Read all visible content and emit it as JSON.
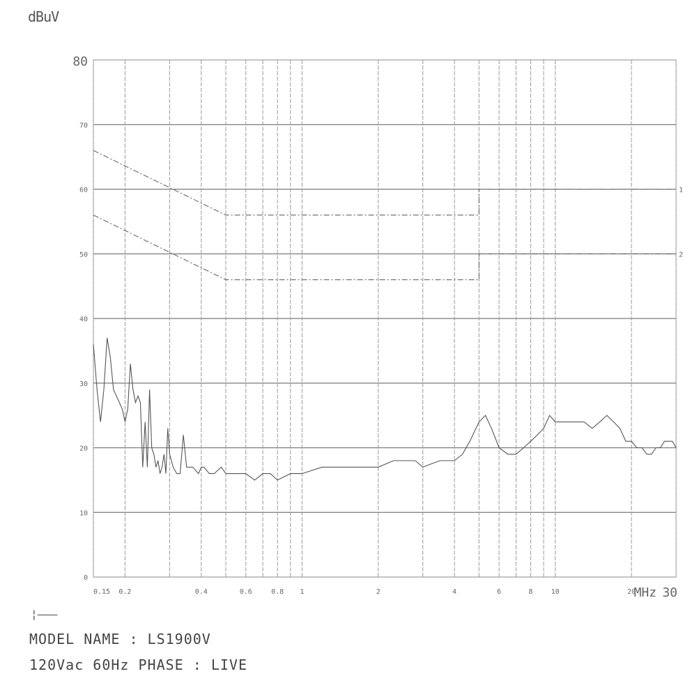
{
  "chart_data": {
    "type": "line",
    "title": "",
    "ylabel": "dBuV",
    "xlabel": "MHz",
    "x_scale": "log",
    "xlim": [
      0.15,
      30
    ],
    "ylim": [
      0,
      80
    ],
    "grid": true,
    "y_ticks": [
      "0",
      "10",
      "20",
      "30",
      "40",
      "50",
      "60",
      "70",
      "80"
    ],
    "x_ticks": [
      {
        "value": 0.15,
        "label": "0.15"
      },
      {
        "value": 0.2,
        "label": "0.2"
      },
      {
        "value": 0.4,
        "label": "0.4"
      },
      {
        "value": 0.6,
        "label": "0.6"
      },
      {
        "value": 0.8,
        "label": "0.8"
      },
      {
        "value": 1,
        "label": "1"
      },
      {
        "value": 2,
        "label": "2"
      },
      {
        "value": 4,
        "label": "4"
      },
      {
        "value": 6,
        "label": "6"
      },
      {
        "value": 8,
        "label": "8"
      },
      {
        "value": 10,
        "label": "10"
      },
      {
        "value": 20,
        "label": "20"
      },
      {
        "value": 30,
        "label": "30"
      }
    ],
    "x_gridlines": [
      0.15,
      0.2,
      0.3,
      0.4,
      0.5,
      0.6,
      0.7,
      0.8,
      0.9,
      1,
      2,
      3,
      4,
      5,
      6,
      7,
      8,
      9,
      10,
      20,
      30
    ],
    "series": [
      {
        "name": "1",
        "style": "dash-dot",
        "x": [
          0.15,
          0.5,
          0.5,
          5,
          5,
          30
        ],
        "y": [
          66,
          56,
          56,
          56,
          60,
          60
        ]
      },
      {
        "name": "2",
        "style": "dash-dot",
        "x": [
          0.15,
          0.5,
          0.5,
          5,
          5,
          30
        ],
        "y": [
          56,
          46,
          46,
          46,
          50,
          50
        ]
      },
      {
        "style": "solid",
        "x": [
          0.15,
          0.155,
          0.16,
          0.165,
          0.17,
          0.175,
          0.18,
          0.185,
          0.19,
          0.195,
          0.2,
          0.205,
          0.21,
          0.215,
          0.22,
          0.225,
          0.23,
          0.235,
          0.24,
          0.245,
          0.25,
          0.255,
          0.26,
          0.265,
          0.27,
          0.275,
          0.28,
          0.285,
          0.29,
          0.295,
          0.3,
          0.31,
          0.32,
          0.33,
          0.34,
          0.35,
          0.37,
          0.39,
          0.4,
          0.41,
          0.43,
          0.45,
          0.48,
          0.5,
          0.55,
          0.6,
          0.65,
          0.7,
          0.75,
          0.8,
          0.9,
          1.0,
          1.2,
          1.5,
          1.8,
          2.0,
          2.3,
          2.5,
          2.8,
          3.0,
          3.5,
          4.0,
          4.3,
          4.6,
          5.0,
          5.3,
          5.6,
          6.0,
          6.5,
          7.0,
          7.5,
          8.0,
          8.5,
          9.0,
          9.5,
          10,
          11,
          12,
          13,
          14,
          15,
          16,
          17,
          18,
          19,
          20,
          21,
          22,
          23,
          24,
          25,
          26,
          27,
          28,
          29,
          30
        ],
        "y": [
          36,
          29,
          24,
          29,
          37,
          34,
          29,
          28,
          27,
          26,
          24,
          26,
          33,
          29,
          27,
          28,
          27,
          17,
          24,
          17,
          29,
          20,
          19,
          17,
          18,
          16,
          17,
          19,
          16,
          23,
          19,
          17,
          16,
          16,
          22,
          17,
          17,
          16,
          17,
          17,
          16,
          16,
          17,
          16,
          16,
          16,
          15,
          16,
          16,
          15,
          16,
          16,
          17,
          17,
          17,
          17,
          18,
          18,
          18,
          17,
          18,
          18,
          19,
          21,
          24,
          25,
          23,
          20,
          19,
          19,
          20,
          21,
          22,
          23,
          25,
          24,
          24,
          24,
          24,
          23,
          24,
          25,
          24,
          23,
          21,
          21,
          20,
          20,
          19,
          19,
          20,
          20,
          21,
          21,
          21,
          20
        ]
      }
    ]
  },
  "footer": {
    "marker": "¦———",
    "model_line": "MODEL NAME : LS1900V",
    "condition_line": "120Vac 60Hz PHASE : LIVE"
  }
}
